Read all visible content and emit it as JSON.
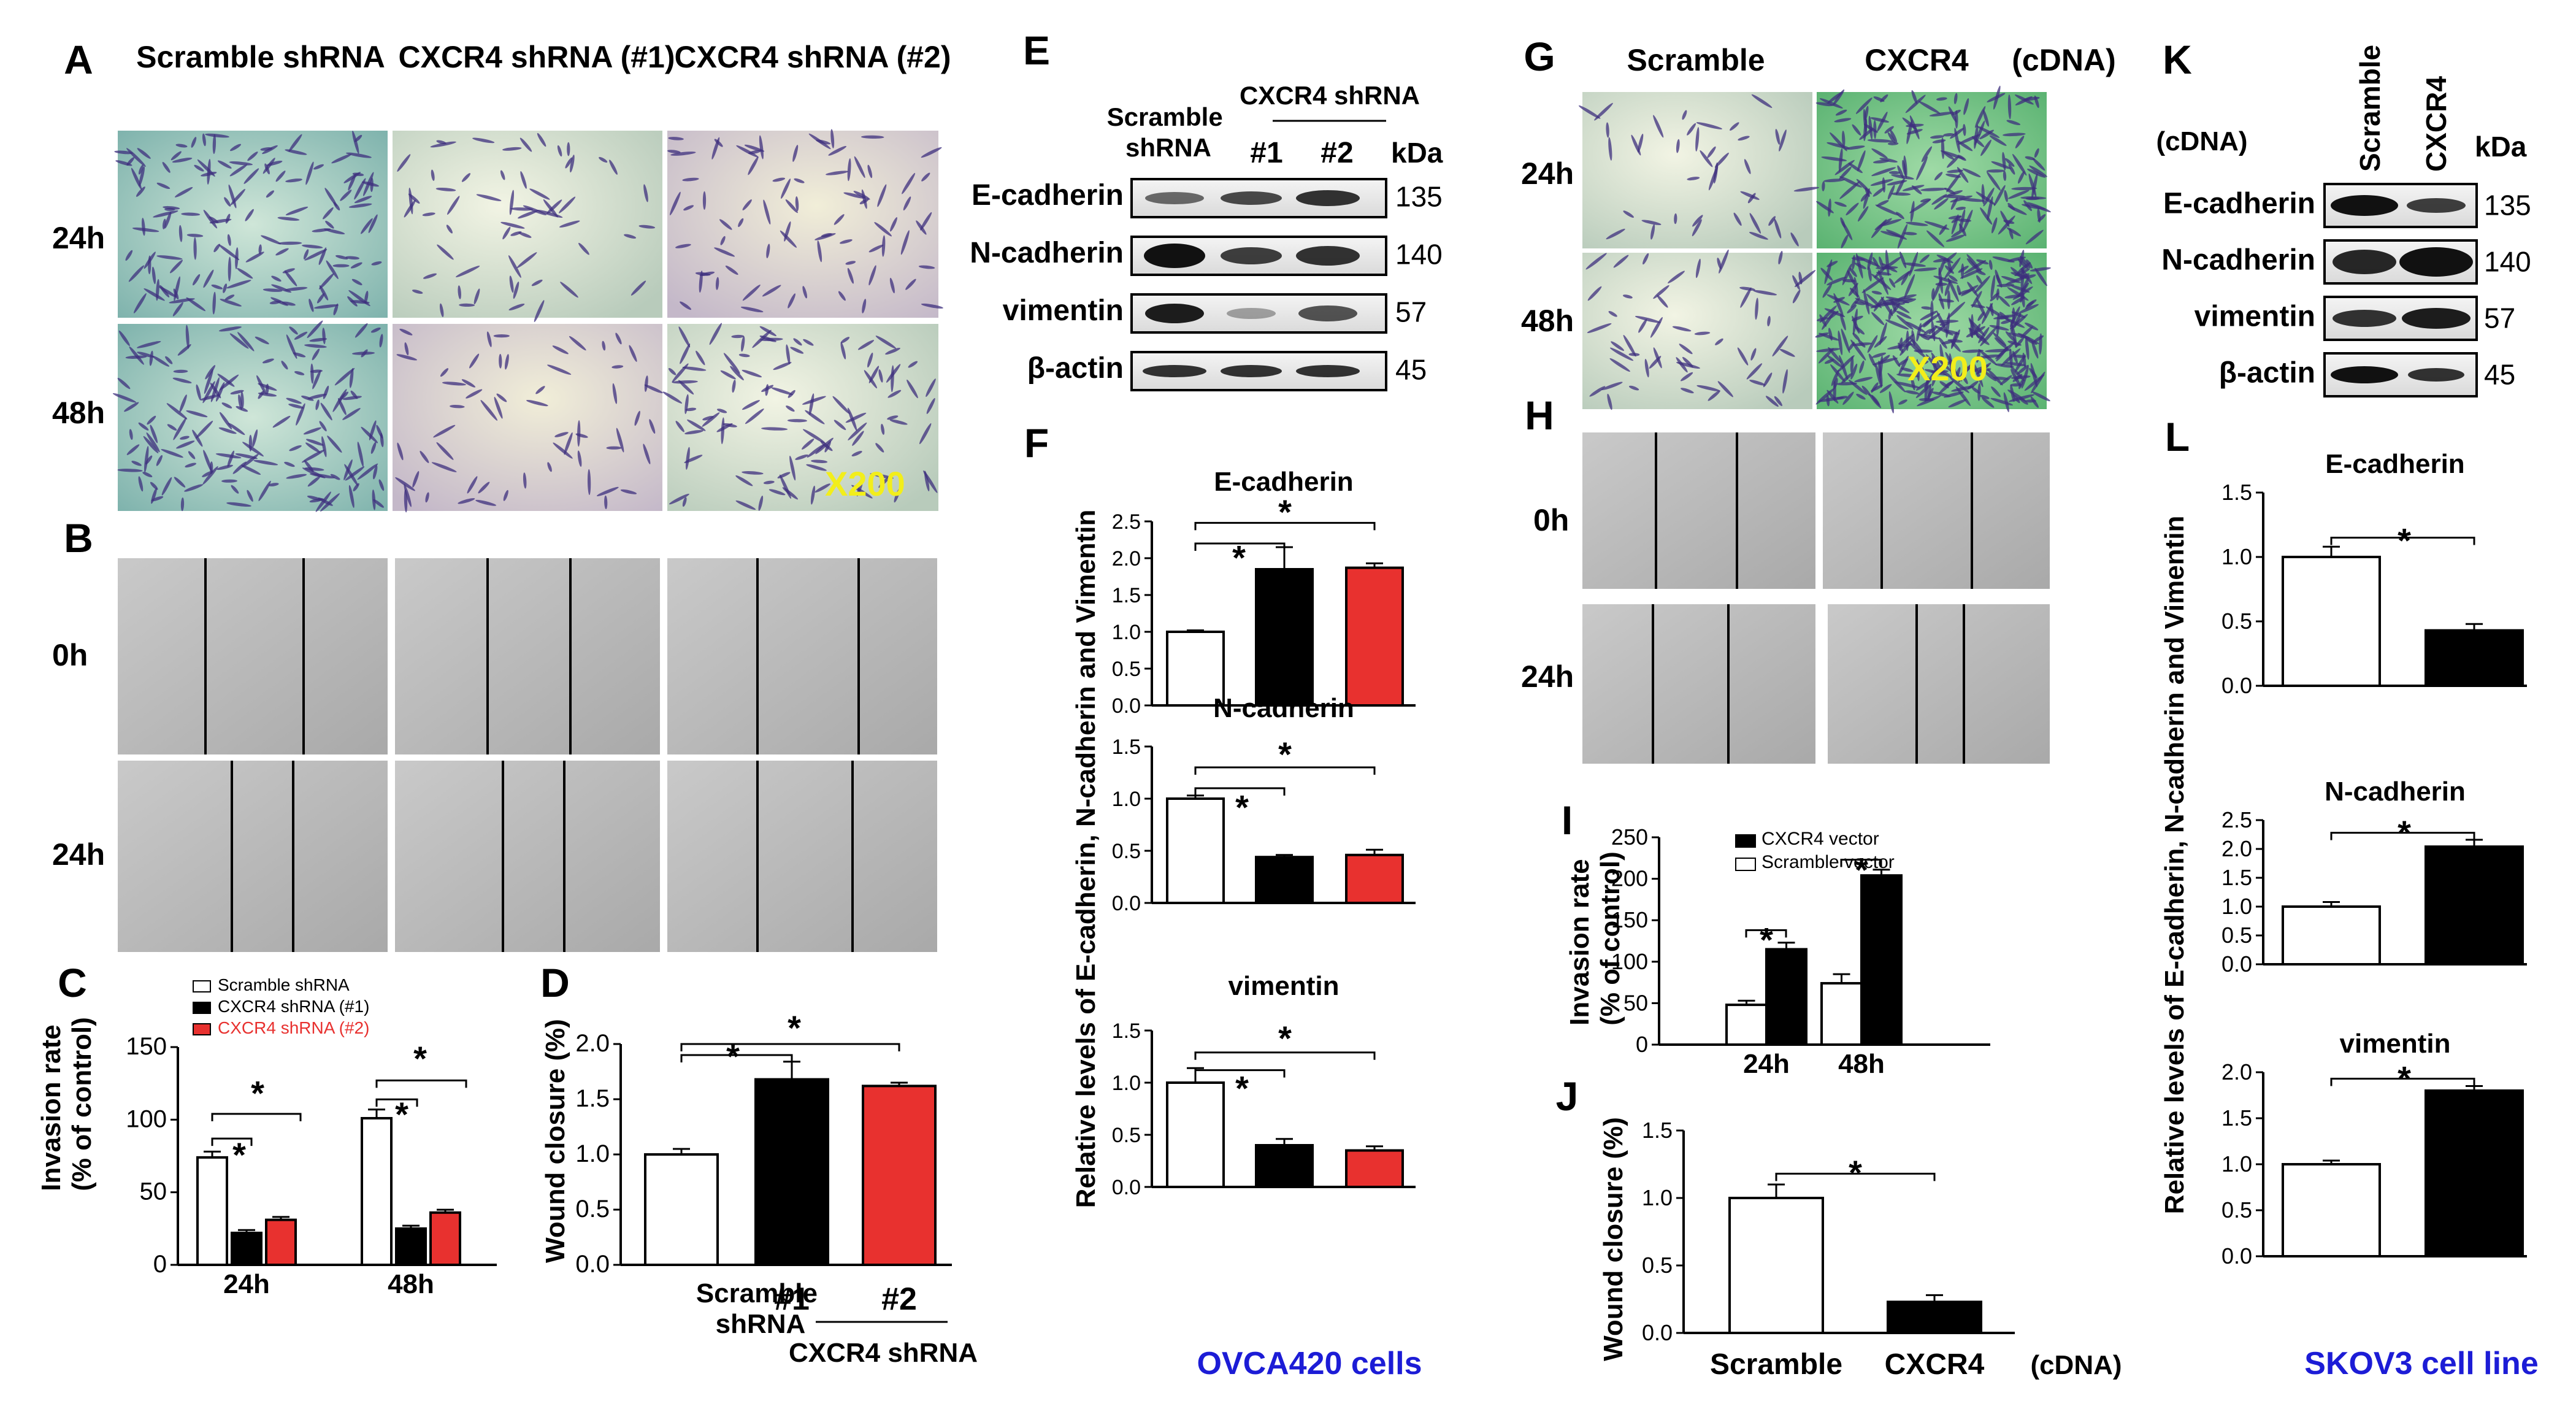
{
  "panel_letters": [
    "A",
    "B",
    "C",
    "D",
    "E",
    "F",
    "G",
    "H",
    "I",
    "J",
    "K",
    "L"
  ],
  "microscope": {
    "ovca_groups": [
      "Scramble shRNA",
      "CXCR4 shRNA (#1)",
      "CXCR4 shRNA (#2)"
    ],
    "skov_groups": [
      "Scramble",
      "CXCR4"
    ],
    "skov_suffix": "(cDNA)",
    "times_invasion": [
      "24h",
      "48h"
    ],
    "times_wound": [
      "0h",
      "24h"
    ],
    "magnification": "X200"
  },
  "blot_e": {
    "header_scramble": "Scramble shRNA",
    "header_cxcr4": "CXCR4 shRNA",
    "lanes_cxcr4": [
      "#1",
      "#2"
    ],
    "unit": "kDa",
    "bands": [
      {
        "name": "E-cadherin",
        "kda": "135"
      },
      {
        "name": "N-cadherin",
        "kda": "140"
      },
      {
        "name": "vimentin",
        "kda": "57"
      },
      {
        "name": "β-actin",
        "kda": "45"
      }
    ]
  },
  "blot_k": {
    "condition": "(cDNA)",
    "lanes": [
      "Scramble",
      "CXCR4"
    ],
    "unit": "kDa",
    "bands": [
      {
        "name": "E-cadherin",
        "kda": "135"
      },
      {
        "name": "N-cadherin",
        "kda": "140"
      },
      {
        "name": "vimentin",
        "kda": "57"
      },
      {
        "name": "β-actin",
        "kda": "45"
      }
    ]
  },
  "labels": {
    "ovca": "OVCA420 cells",
    "skov": "SKOV3 cell line",
    "rel_levels": "Relative levels of  E-cadherin, N-cadherin and Vimentin",
    "star": "*"
  },
  "colors": {
    "black": "#000000",
    "red": "#e8312f",
    "white": "#ffffff",
    "blue": "#1c1cd6",
    "yellow": "#f2ee1b"
  },
  "chart_data": [
    {
      "id": "C",
      "type": "bar",
      "ylabel": "Invasion rate (% of control)",
      "ylim": [
        0,
        150
      ],
      "yticks": [
        0,
        50,
        100,
        150
      ],
      "categories": [
        "24h",
        "48h"
      ],
      "series": [
        {
          "name": "Scramble shRNA",
          "color": "#ffffff",
          "values": [
            74,
            101
          ],
          "errors": [
            4,
            6
          ]
        },
        {
          "name": "CXCR4 shRNA (#1)",
          "color": "#000000",
          "values": [
            22,
            25
          ],
          "errors": [
            2,
            2
          ]
        },
        {
          "name": "CXCR4 shRNA (#2)",
          "color": "#e8312f",
          "values": [
            31,
            36
          ],
          "errors": [
            2,
            2
          ]
        }
      ],
      "legend": "top-left"
    },
    {
      "id": "D",
      "type": "bar",
      "ylabel": "Wound closure (%)",
      "ylim": [
        0,
        2.0
      ],
      "yticks": [
        0.0,
        0.5,
        1.0,
        1.5,
        2.0
      ],
      "categories": [
        "Scramble shRNA",
        "#1",
        "#2"
      ],
      "group_label": "CXCR4 shRNA",
      "values": [
        1.0,
        1.68,
        1.62
      ],
      "errors": [
        0.05,
        0.16,
        0.03
      ],
      "colors": [
        "#ffffff",
        "#000000",
        "#e8312f"
      ]
    },
    {
      "id": "F1",
      "type": "bar",
      "title": "E-cadherin",
      "ylim": [
        0,
        2.5
      ],
      "yticks": [
        0.0,
        0.5,
        1.0,
        1.5,
        2.0,
        2.5
      ],
      "values": [
        1.0,
        1.85,
        1.87
      ],
      "errors": [
        0.02,
        0.3,
        0.06
      ],
      "colors": [
        "#ffffff",
        "#000000",
        "#e8312f"
      ]
    },
    {
      "id": "F2",
      "type": "bar",
      "title": "N-cadherin",
      "ylim": [
        0,
        1.5
      ],
      "yticks": [
        0.0,
        0.5,
        1.0,
        1.5
      ],
      "values": [
        1.0,
        0.44,
        0.46
      ],
      "errors": [
        0.03,
        0.02,
        0.05
      ],
      "colors": [
        "#ffffff",
        "#000000",
        "#e8312f"
      ]
    },
    {
      "id": "F3",
      "type": "bar",
      "title": "vimentin",
      "ylim": [
        0,
        1.5
      ],
      "yticks": [
        0.0,
        0.5,
        1.0,
        1.5
      ],
      "values": [
        1.0,
        0.4,
        0.35
      ],
      "errors": [
        0.14,
        0.06,
        0.04
      ],
      "colors": [
        "#ffffff",
        "#000000",
        "#e8312f"
      ]
    },
    {
      "id": "I",
      "type": "bar",
      "ylabel": "Invasion rate (% of control)",
      "ylim": [
        0,
        250
      ],
      "yticks": [
        0,
        50,
        100,
        150,
        200,
        250
      ],
      "categories": [
        "24h",
        "48h"
      ],
      "series": [
        {
          "name": "Scramble vector",
          "color": "#ffffff",
          "values": [
            48,
            74
          ],
          "errors": [
            5,
            11
          ]
        },
        {
          "name": "CXCR4 vector",
          "color": "#000000",
          "values": [
            115,
            204
          ],
          "errors": [
            8,
            7
          ]
        }
      ],
      "legend": "top-left"
    },
    {
      "id": "J",
      "type": "bar",
      "ylabel": "Wound closure (%)",
      "ylim": [
        0,
        1.5
      ],
      "yticks": [
        0.0,
        0.5,
        1.0,
        1.5
      ],
      "categories": [
        "Scramble",
        "CXCR4"
      ],
      "suffix": "(cDNA)",
      "values": [
        1.0,
        0.23
      ],
      "errors": [
        0.1,
        0.05
      ],
      "colors": [
        "#ffffff",
        "#000000"
      ]
    },
    {
      "id": "L1",
      "type": "bar",
      "title": "E-cadherin",
      "ylim": [
        0,
        1.5
      ],
      "yticks": [
        0.0,
        0.5,
        1.0,
        1.5
      ],
      "values": [
        1.0,
        0.43
      ],
      "errors": [
        0.08,
        0.05
      ],
      "colors": [
        "#ffffff",
        "#000000"
      ]
    },
    {
      "id": "L2",
      "type": "bar",
      "title": "N-cadherin",
      "ylim": [
        0,
        2.5
      ],
      "yticks": [
        0.0,
        0.5,
        1.0,
        1.5,
        2.0,
        2.5
      ],
      "values": [
        1.0,
        2.04
      ],
      "errors": [
        0.08,
        0.12
      ],
      "colors": [
        "#ffffff",
        "#000000"
      ]
    },
    {
      "id": "L3",
      "type": "bar",
      "title": "vimentin",
      "ylim": [
        0,
        2.0
      ],
      "yticks": [
        0.0,
        0.5,
        1.0,
        1.5,
        2.0
      ],
      "values": [
        1.0,
        1.8
      ],
      "errors": [
        0.04,
        0.05
      ],
      "colors": [
        "#ffffff",
        "#000000"
      ]
    }
  ]
}
